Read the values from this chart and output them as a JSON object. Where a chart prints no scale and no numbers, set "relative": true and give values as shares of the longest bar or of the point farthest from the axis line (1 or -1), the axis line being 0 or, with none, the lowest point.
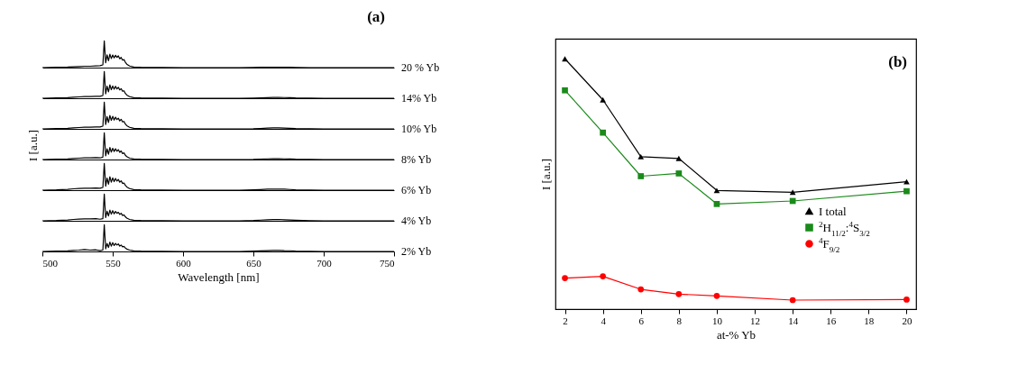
{
  "chart_data": [
    {
      "type": "line",
      "annotations": [
        "(a)"
      ],
      "relative": true,
      "xlim": [
        500,
        750
      ],
      "tick_labels": false,
      "x": [
        500,
        510,
        518,
        522,
        526,
        530,
        534,
        538,
        541,
        543,
        544,
        545,
        546,
        547,
        548,
        549,
        550,
        551,
        552,
        553,
        554,
        555,
        556,
        557,
        558,
        559,
        560,
        562,
        565,
        570,
        600,
        640,
        650,
        655,
        660,
        664,
        668,
        672,
        676,
        680,
        690,
        700,
        750
      ],
      "series": [
        {
          "name": "20 % Yb",
          "color": "#000000",
          "values": [
            0,
            0.01,
            0.02,
            0.03,
            0.04,
            0.05,
            0.05,
            0.06,
            0.07,
            0.1,
            1,
            0.18,
            0.48,
            0.26,
            0.5,
            0.34,
            0.47,
            0.36,
            0.46,
            0.38,
            0.44,
            0.33,
            0.38,
            0.28,
            0.3,
            0.2,
            0.13,
            0.06,
            0.02,
            0.01,
            0,
            0,
            0.005,
            0.01,
            0.015,
            0.015,
            0.015,
            0.015,
            0.01,
            0.005,
            0,
            0,
            0
          ]
        }
      ]
    },
    {
      "type": "line",
      "relative": true,
      "xlim": [
        500,
        750
      ],
      "tick_labels": false,
      "x": [
        500,
        510,
        518,
        522,
        526,
        530,
        534,
        538,
        541,
        543,
        544,
        545,
        546,
        547,
        548,
        549,
        550,
        551,
        552,
        553,
        554,
        555,
        556,
        557,
        558,
        559,
        560,
        562,
        565,
        570,
        600,
        640,
        650,
        655,
        660,
        664,
        668,
        672,
        676,
        680,
        690,
        700,
        750
      ],
      "series": [
        {
          "name": "14% Yb",
          "color": "#000000",
          "values": [
            0,
            0.01,
            0.02,
            0.04,
            0.05,
            0.06,
            0.06,
            0.07,
            0.07,
            0.1,
            1,
            0.16,
            0.45,
            0.24,
            0.5,
            0.32,
            0.46,
            0.34,
            0.45,
            0.35,
            0.41,
            0.31,
            0.36,
            0.26,
            0.28,
            0.18,
            0.12,
            0.06,
            0.02,
            0.01,
            0,
            0,
            0.005,
            0.01,
            0.02,
            0.03,
            0.03,
            0.025,
            0.02,
            0.01,
            0.005,
            0,
            0
          ]
        }
      ]
    },
    {
      "type": "line",
      "relative": true,
      "xlim": [
        500,
        750
      ],
      "tick_labels": false,
      "x": [
        500,
        510,
        518,
        522,
        526,
        530,
        534,
        538,
        541,
        543,
        544,
        545,
        546,
        547,
        548,
        549,
        550,
        551,
        552,
        553,
        554,
        555,
        556,
        557,
        558,
        559,
        560,
        562,
        565,
        570,
        600,
        640,
        650,
        655,
        660,
        664,
        668,
        672,
        676,
        680,
        690,
        700,
        750
      ],
      "series": [
        {
          "name": "10% Yb",
          "color": "#000000",
          "values": [
            0,
            0.01,
            0.02,
            0.04,
            0.05,
            0.06,
            0.06,
            0.07,
            0.07,
            0.1,
            1,
            0.16,
            0.46,
            0.24,
            0.5,
            0.32,
            0.47,
            0.33,
            0.44,
            0.35,
            0.4,
            0.3,
            0.36,
            0.26,
            0.28,
            0.18,
            0.12,
            0.06,
            0.02,
            0.01,
            0,
            0,
            0.005,
            0.015,
            0.03,
            0.035,
            0.035,
            0.03,
            0.02,
            0.01,
            0.005,
            0,
            0
          ]
        }
      ]
    },
    {
      "type": "line",
      "ylabel": "I [a.u.]",
      "relative": true,
      "xlim": [
        500,
        750
      ],
      "tick_labels": false,
      "x": [
        500,
        510,
        518,
        522,
        526,
        530,
        534,
        538,
        541,
        543,
        544,
        545,
        546,
        547,
        548,
        549,
        550,
        551,
        552,
        553,
        554,
        555,
        556,
        557,
        558,
        559,
        560,
        562,
        565,
        570,
        600,
        640,
        650,
        655,
        660,
        664,
        668,
        672,
        676,
        680,
        690,
        700,
        750
      ],
      "series": [
        {
          "name": "8% Yb",
          "color": "#000000",
          "values": [
            0,
            0.01,
            0.02,
            0.04,
            0.05,
            0.06,
            0.06,
            0.07,
            0.06,
            0.09,
            1,
            0.14,
            0.4,
            0.2,
            0.45,
            0.28,
            0.42,
            0.3,
            0.4,
            0.31,
            0.37,
            0.27,
            0.32,
            0.22,
            0.25,
            0.16,
            0.11,
            0.05,
            0.02,
            0.01,
            0,
            0,
            0.005,
            0.015,
            0.025,
            0.03,
            0.03,
            0.025,
            0.02,
            0.01,
            0.005,
            0,
            0
          ]
        }
      ]
    },
    {
      "type": "line",
      "relative": true,
      "xlim": [
        500,
        750
      ],
      "tick_labels": false,
      "x": [
        500,
        510,
        518,
        522,
        526,
        530,
        534,
        538,
        541,
        543,
        544,
        545,
        546,
        547,
        548,
        549,
        550,
        551,
        552,
        553,
        554,
        555,
        556,
        557,
        558,
        559,
        560,
        562,
        565,
        570,
        600,
        640,
        650,
        655,
        660,
        664,
        668,
        672,
        676,
        680,
        690,
        700,
        750
      ],
      "series": [
        {
          "name": "6% Yb",
          "color": "#000000",
          "values": [
            0,
            0.01,
            0.03,
            0.05,
            0.06,
            0.07,
            0.07,
            0.08,
            0.07,
            0.1,
            1,
            0.15,
            0.45,
            0.22,
            0.5,
            0.3,
            0.46,
            0.32,
            0.44,
            0.34,
            0.4,
            0.3,
            0.35,
            0.25,
            0.27,
            0.18,
            0.12,
            0.06,
            0.02,
            0.01,
            0,
            0,
            0.01,
            0.02,
            0.035,
            0.04,
            0.04,
            0.035,
            0.025,
            0.015,
            0.005,
            0,
            0
          ]
        }
      ]
    },
    {
      "type": "line",
      "relative": true,
      "xlim": [
        500,
        750
      ],
      "tick_labels": false,
      "x": [
        500,
        510,
        518,
        522,
        526,
        530,
        534,
        538,
        541,
        543,
        544,
        545,
        546,
        547,
        548,
        549,
        550,
        551,
        552,
        553,
        554,
        555,
        556,
        557,
        558,
        559,
        560,
        562,
        565,
        570,
        600,
        640,
        650,
        655,
        660,
        664,
        668,
        672,
        676,
        680,
        690,
        700,
        750
      ],
      "series": [
        {
          "name": "4% Yb",
          "color": "#000000",
          "values": [
            0,
            0.01,
            0.03,
            0.05,
            0.06,
            0.07,
            0.07,
            0.08,
            0.06,
            0.08,
            1,
            0.12,
            0.36,
            0.18,
            0.4,
            0.25,
            0.38,
            0.26,
            0.35,
            0.28,
            0.32,
            0.24,
            0.28,
            0.2,
            0.22,
            0.15,
            0.1,
            0.05,
            0.02,
            0.01,
            0,
            0,
            0.01,
            0.025,
            0.04,
            0.045,
            0.05,
            0.04,
            0.03,
            0.02,
            0.005,
            0,
            0
          ]
        }
      ]
    },
    {
      "type": "line",
      "xlabel": "Wavelength [nm]",
      "relative": true,
      "xlim": [
        500,
        750
      ],
      "xticks": [
        500,
        550,
        600,
        650,
        700,
        750
      ],
      "tick_labels": "x",
      "x": [
        500,
        510,
        518,
        522,
        526,
        530,
        534,
        538,
        541,
        543,
        544,
        545,
        546,
        547,
        548,
        549,
        550,
        551,
        552,
        553,
        554,
        555,
        556,
        557,
        558,
        559,
        560,
        562,
        565,
        570,
        600,
        640,
        650,
        655,
        660,
        664,
        668,
        672,
        676,
        680,
        690,
        700,
        750
      ],
      "series": [
        {
          "name": "2% Yb",
          "color": "#000000",
          "values": [
            0,
            0.01,
            0.02,
            0.04,
            0.05,
            0.07,
            0.05,
            0.06,
            0.03,
            0.05,
            1,
            0.1,
            0.3,
            0.15,
            0.35,
            0.2,
            0.33,
            0.22,
            0.3,
            0.24,
            0.28,
            0.2,
            0.24,
            0.17,
            0.19,
            0.13,
            0.09,
            0.05,
            0.02,
            0.01,
            0,
            0,
            0.01,
            0.02,
            0.03,
            0.035,
            0.04,
            0.03,
            0.025,
            0.015,
            0.005,
            0,
            0
          ]
        }
      ]
    },
    {
      "type": "line",
      "annotations": [
        "(b)"
      ],
      "xlabel": "at-% Yb",
      "ylabel": "I [a.u.]",
      "relative": true,
      "legend": "bottom right",
      "xlim": [
        1.5,
        20.5
      ],
      "xticks": [
        2,
        4,
        6,
        8,
        10,
        12,
        14,
        16,
        18,
        20
      ],
      "x": [
        2,
        4,
        6,
        8,
        10,
        14,
        20
      ],
      "series": [
        {
          "name": "I total",
          "color": "#000000",
          "marker": "triangle",
          "values": [
            1,
            0.836,
            0.609,
            0.602,
            0.474,
            0.467,
            0.509
          ]
        },
        {
          "name": "$^{2}$H$_{11/2}$:$^{4}$S$_{3/2}$",
          "color": "#1a8a1a",
          "marker": "square",
          "values": [
            0.874,
            0.705,
            0.531,
            0.542,
            0.42,
            0.432,
            0.471
          ]
        },
        {
          "name": "$^{4}$F$_{9/2}$",
          "color": "#ff0000",
          "marker": "circle",
          "values": [
            0.124,
            0.131,
            0.079,
            0.06,
            0.053,
            0.036,
            0.038
          ]
        }
      ]
    }
  ]
}
